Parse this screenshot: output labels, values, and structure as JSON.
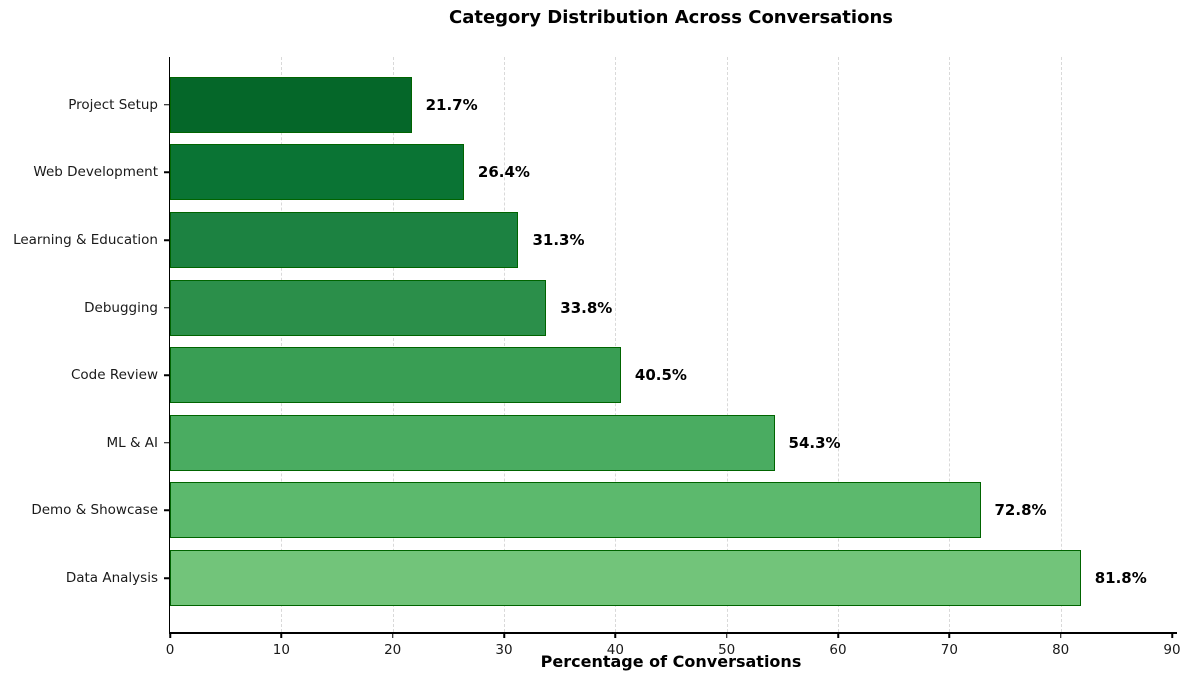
{
  "chart_data": {
    "type": "bar",
    "orientation": "horizontal",
    "title": "Category Distribution Across Conversations",
    "xlabel": "Percentage of Conversations",
    "categories": [
      "Project Setup",
      "Web Development",
      "Learning & Education",
      "Debugging",
      "Code Review",
      "ML & AI",
      "Demo & Showcase",
      "Data Analysis"
    ],
    "values": [
      21.7,
      26.4,
      31.3,
      33.8,
      40.5,
      54.3,
      72.8,
      81.8
    ],
    "value_labels": [
      "21.7%",
      "26.4%",
      "31.3%",
      "33.8%",
      "40.5%",
      "54.3%",
      "72.8%",
      "81.8%"
    ],
    "xlim": [
      0,
      90
    ],
    "xticks": [
      0,
      10,
      20,
      30,
      40,
      50,
      60,
      70,
      80,
      90
    ],
    "grid": {
      "axis": "x",
      "style": "dashed",
      "color": "#d9d9d9"
    },
    "legend": "none",
    "bar_colors": [
      "#056729",
      "#0a7434",
      "#1c8241",
      "#2b8f4a",
      "#399e54",
      "#4aac61",
      "#5cb96d",
      "#72c47a"
    ],
    "bar_edge_color": "#006400",
    "colors": {
      "title": "#000000",
      "tick_label": "#1a1a1a",
      "value_label": "#000000",
      "spine": "#000000",
      "background": "#ffffff"
    }
  }
}
